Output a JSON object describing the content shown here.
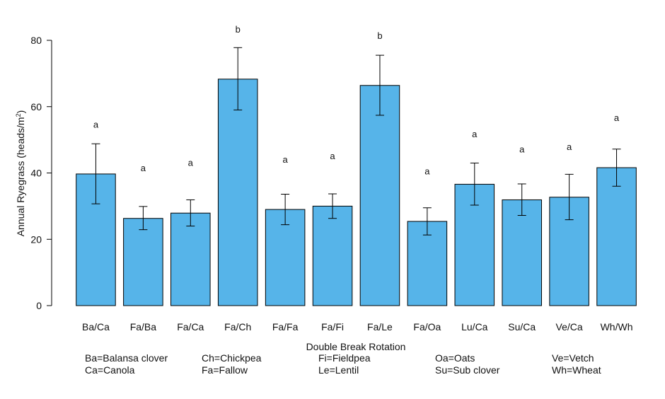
{
  "chart_data": {
    "type": "bar",
    "title": "",
    "xlabel": "Double Break Rotation",
    "ylabel_main": "Annual Ryegrass  (heads/m",
    "ylabel_sup": "2",
    "ylabel_close": ")",
    "ylim": [
      0,
      80
    ],
    "yticks": [
      0,
      20,
      40,
      60,
      80
    ],
    "grid": false,
    "bar_color": "#56b4e9",
    "categories": [
      "Ba/Ca",
      "Fa/Ba",
      "Fa/Ca",
      "Fa/Ch",
      "Fa/Fa",
      "Fa/Fi",
      "Fa/Le",
      "Fa/Oa",
      "Lu/Ca",
      "Su/Ca",
      "Ve/Ca",
      "Wh/Wh"
    ],
    "values": [
      39.7,
      26.3,
      27.9,
      68.3,
      29.0,
      30.0,
      66.4,
      25.4,
      36.6,
      31.9,
      32.7,
      41.6
    ],
    "error_low": [
      30.7,
      22.9,
      24.0,
      59.0,
      24.4,
      26.3,
      57.4,
      21.3,
      30.3,
      27.2,
      25.9,
      36.0
    ],
    "error_high": [
      48.8,
      29.9,
      31.9,
      77.8,
      33.6,
      33.7,
      75.5,
      29.5,
      43.0,
      36.7,
      39.6,
      47.2
    ],
    "significance_letters": [
      "a",
      "a",
      "a",
      "b",
      "a",
      "a",
      "b",
      "a",
      "a",
      "a",
      "a",
      "a"
    ],
    "letter_positions": [
      54.5,
      41.4,
      43.0,
      83.2,
      44.0,
      45.0,
      81.3,
      40.4,
      51.6,
      47.0,
      47.8,
      56.5
    ]
  },
  "legend": {
    "abbreviations": [
      [
        "Ba=Balansa clover",
        "Ca=Canola"
      ],
      [
        "Ch=Chickpea",
        "Fa=Fallow"
      ],
      [
        "Fi=Fieldpea",
        "Le=Lentil"
      ],
      [
        "Oa=Oats",
        "Su=Sub clover"
      ],
      [
        "Ve=Vetch",
        "Wh=Wheat"
      ]
    ]
  }
}
